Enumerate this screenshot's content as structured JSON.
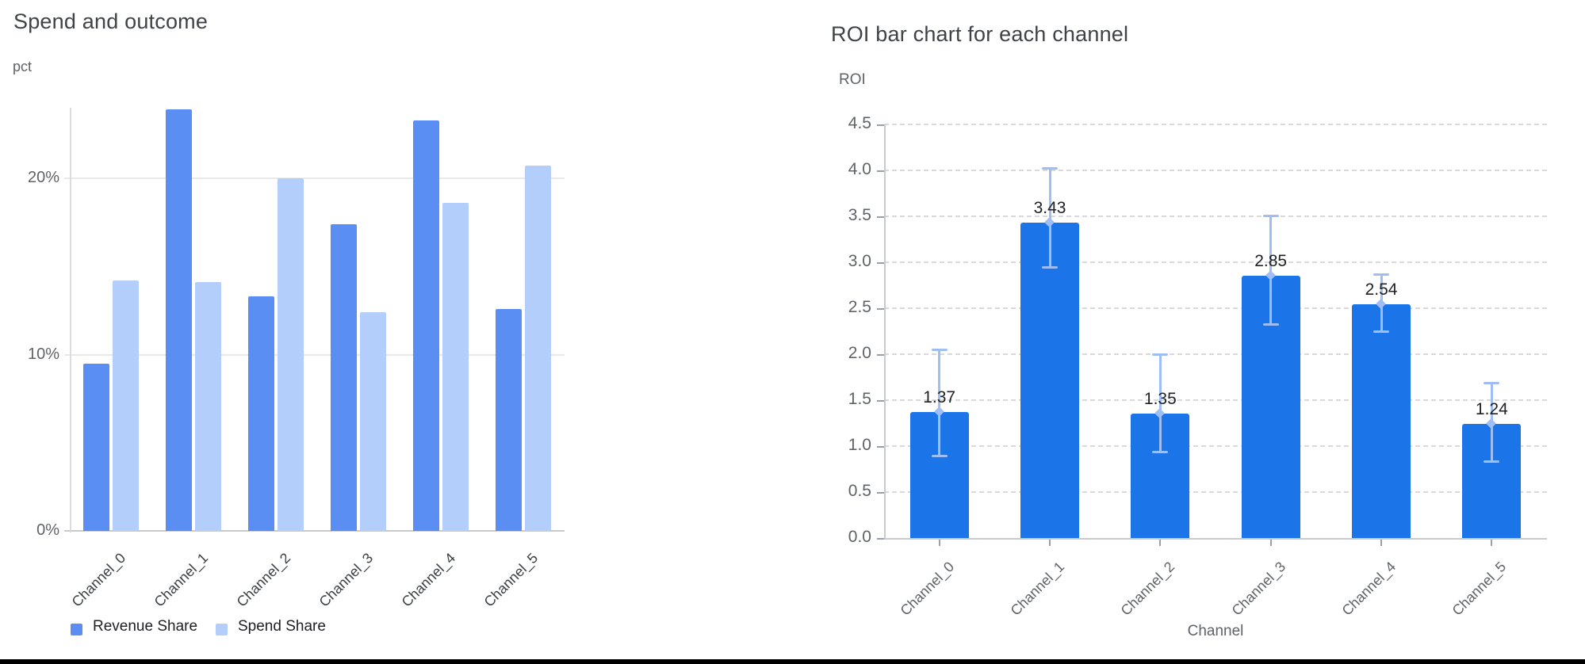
{
  "page": {
    "background": "#ffffff",
    "bottom_bar_color": "#000000"
  },
  "chart_data": [
    {
      "id": "spend_and_outcome",
      "type": "bar",
      "title": "Spend and outcome",
      "ylabel": "pct",
      "xlabel": "",
      "categories": [
        "Channel_0",
        "Channel_1",
        "Channel_2",
        "Channel_3",
        "Channel_4",
        "Channel_5"
      ],
      "series": [
        {
          "name": "Revenue Share",
          "color": "#5b8ef2",
          "values": [
            9.5,
            23.9,
            13.3,
            17.4,
            23.3,
            12.6
          ]
        },
        {
          "name": "Spend Share",
          "color": "#b3cefb",
          "values": [
            14.2,
            14.1,
            20.0,
            12.4,
            18.6,
            20.7
          ]
        }
      ],
      "y_ticks": [
        {
          "value": 0,
          "label": "0%"
        },
        {
          "value": 10,
          "label": "10%"
        },
        {
          "value": 20,
          "label": "20%"
        }
      ],
      "ylim": [
        0,
        24
      ],
      "grid": "solid",
      "legend_position": "bottom-left"
    },
    {
      "id": "roi_by_channel",
      "type": "bar",
      "title": "ROI bar chart for each channel",
      "ylabel": "ROI",
      "xlabel": "Channel",
      "categories": [
        "Channel_0",
        "Channel_1",
        "Channel_2",
        "Channel_3",
        "Channel_4",
        "Channel_5"
      ],
      "values": [
        1.37,
        3.43,
        1.35,
        2.85,
        2.54,
        1.24
      ],
      "value_labels": [
        "1.37",
        "3.43",
        "1.35",
        "2.85",
        "2.54",
        "1.24"
      ],
      "error_low": [
        0.89,
        2.94,
        0.93,
        2.32,
        2.24,
        0.83
      ],
      "error_high": [
        2.05,
        4.03,
        2.0,
        3.51,
        2.87,
        1.69
      ],
      "bar_color": "#1b74e8",
      "error_bar_color": "#9fbef6",
      "y_ticks": [
        "0.0",
        "0.5",
        "1.0",
        "1.5",
        "2.0",
        "2.5",
        "3.0",
        "3.5",
        "4.0",
        "4.5"
      ],
      "y_tick_step": 0.5,
      "ylim": [
        0,
        4.5
      ],
      "grid": "dashed",
      "legend_position": "none"
    }
  ]
}
